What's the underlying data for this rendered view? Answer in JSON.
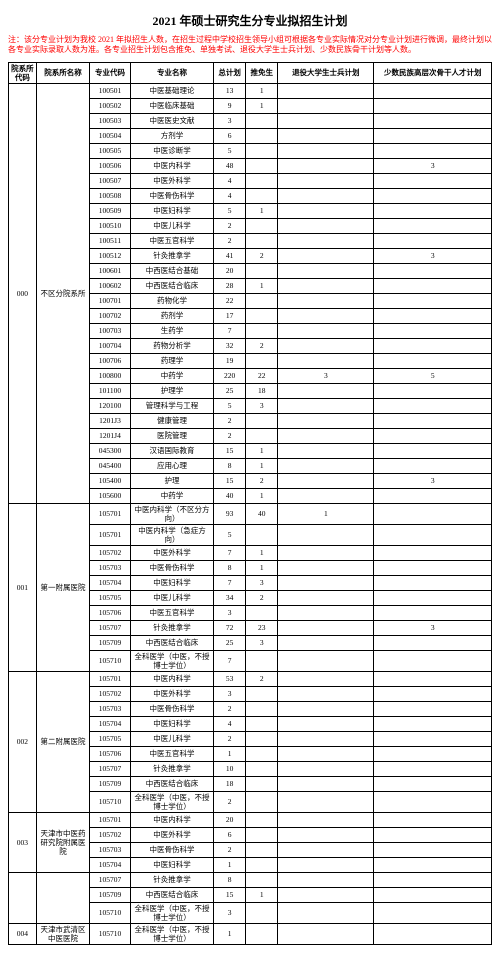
{
  "title": "2021 年硕士研究生分专业拟招生计划",
  "note_label": "注：",
  "note_text": "该分专业计划为我校 2021 年拟招生人数，在招生过程中学校招生领导小组可根据各专业实际情况对分专业计划进行微调，最终计划以各专业实际录取人数为准。各专业招生计划包含推免、单独考试、退役大学生士兵计划、少数民族骨干计划等人数。",
  "headers": {
    "dept_code": "院系所代码",
    "dept_name": "院系所名称",
    "major_code": "专业代码",
    "major_name": "专业名称",
    "total": "总计划",
    "rec": "推免生",
    "soldier": "退役大学生士兵计划",
    "minority": "少数民族高层次骨干人才计划"
  },
  "groups": [
    {
      "dept_code": "000",
      "dept_name": "不区分院系所",
      "rows": [
        {
          "mc": "100501",
          "mn": "中医基础理论",
          "t": "13",
          "r": "1",
          "s": "",
          "m": ""
        },
        {
          "mc": "100502",
          "mn": "中医临床基础",
          "t": "9",
          "r": "1",
          "s": "",
          "m": ""
        },
        {
          "mc": "100503",
          "mn": "中医医史文献",
          "t": "3",
          "r": "",
          "s": "",
          "m": ""
        },
        {
          "mc": "100504",
          "mn": "方剂学",
          "t": "6",
          "r": "",
          "s": "",
          "m": ""
        },
        {
          "mc": "100505",
          "mn": "中医诊断学",
          "t": "5",
          "r": "",
          "s": "",
          "m": ""
        },
        {
          "mc": "100506",
          "mn": "中医内科学",
          "t": "48",
          "r": "",
          "s": "",
          "m": "3"
        },
        {
          "mc": "100507",
          "mn": "中医外科学",
          "t": "4",
          "r": "",
          "s": "",
          "m": ""
        },
        {
          "mc": "100508",
          "mn": "中医骨伤科学",
          "t": "4",
          "r": "",
          "s": "",
          "m": ""
        },
        {
          "mc": "100509",
          "mn": "中医妇科学",
          "t": "5",
          "r": "1",
          "s": "",
          "m": ""
        },
        {
          "mc": "100510",
          "mn": "中医儿科学",
          "t": "2",
          "r": "",
          "s": "",
          "m": ""
        },
        {
          "mc": "100511",
          "mn": "中医五官科学",
          "t": "2",
          "r": "",
          "s": "",
          "m": ""
        },
        {
          "mc": "100512",
          "mn": "针灸推拿学",
          "t": "41",
          "r": "2",
          "s": "",
          "m": "3"
        },
        {
          "mc": "100601",
          "mn": "中西医结合基础",
          "t": "20",
          "r": "",
          "s": "",
          "m": ""
        },
        {
          "mc": "100602",
          "mn": "中西医结合临床",
          "t": "28",
          "r": "1",
          "s": "",
          "m": ""
        },
        {
          "mc": "100701",
          "mn": "药物化学",
          "t": "22",
          "r": "",
          "s": "",
          "m": ""
        },
        {
          "mc": "100702",
          "mn": "药剂学",
          "t": "17",
          "r": "",
          "s": "",
          "m": ""
        },
        {
          "mc": "100703",
          "mn": "生药学",
          "t": "7",
          "r": "",
          "s": "",
          "m": ""
        },
        {
          "mc": "100704",
          "mn": "药物分析学",
          "t": "32",
          "r": "2",
          "s": "",
          "m": ""
        },
        {
          "mc": "100706",
          "mn": "药理学",
          "t": "19",
          "r": "",
          "s": "",
          "m": ""
        },
        {
          "mc": "100800",
          "mn": "中药学",
          "t": "220",
          "r": "22",
          "s": "3",
          "m": "5"
        },
        {
          "mc": "101100",
          "mn": "护理学",
          "t": "25",
          "r": "18",
          "s": "",
          "m": ""
        },
        {
          "mc": "120100",
          "mn": "管理科学与工程",
          "t": "5",
          "r": "3",
          "s": "",
          "m": ""
        },
        {
          "mc": "1201J3",
          "mn": "健康管理",
          "t": "2",
          "r": "",
          "s": "",
          "m": ""
        },
        {
          "mc": "1201J4",
          "mn": "医院管理",
          "t": "2",
          "r": "",
          "s": "",
          "m": ""
        },
        {
          "mc": "045300",
          "mn": "汉语国际教育",
          "t": "15",
          "r": "1",
          "s": "",
          "m": ""
        },
        {
          "mc": "045400",
          "mn": "应用心理",
          "t": "8",
          "r": "1",
          "s": "",
          "m": ""
        },
        {
          "mc": "105400",
          "mn": "护理",
          "t": "15",
          "r": "2",
          "s": "",
          "m": "3"
        },
        {
          "mc": "105600",
          "mn": "中药学",
          "t": "40",
          "r": "1",
          "s": "",
          "m": ""
        }
      ]
    },
    {
      "dept_code": "001",
      "dept_name": "第一附属医院",
      "rows": [
        {
          "mc": "105701",
          "mn": "中医内科学（不区分方向）",
          "t": "93",
          "r": "40",
          "s": "1",
          "m": ""
        },
        {
          "mc": "105701",
          "mn": "中医内科学（急症方向）",
          "t": "5",
          "r": "",
          "s": "",
          "m": ""
        },
        {
          "mc": "105702",
          "mn": "中医外科学",
          "t": "7",
          "r": "1",
          "s": "",
          "m": ""
        },
        {
          "mc": "105703",
          "mn": "中医骨伤科学",
          "t": "8",
          "r": "1",
          "s": "",
          "m": ""
        },
        {
          "mc": "105704",
          "mn": "中医妇科学",
          "t": "7",
          "r": "3",
          "s": "",
          "m": ""
        },
        {
          "mc": "105705",
          "mn": "中医儿科学",
          "t": "34",
          "r": "2",
          "s": "",
          "m": ""
        },
        {
          "mc": "105706",
          "mn": "中医五官科学",
          "t": "3",
          "r": "",
          "s": "",
          "m": ""
        },
        {
          "mc": "105707",
          "mn": "针灸推拿学",
          "t": "72",
          "r": "23",
          "s": "",
          "m": "3"
        },
        {
          "mc": "105709",
          "mn": "中西医结合临床",
          "t": "25",
          "r": "3",
          "s": "",
          "m": ""
        },
        {
          "mc": "105710",
          "mn": "全科医学（中医，不授博士学位）",
          "t": "7",
          "r": "",
          "s": "",
          "m": ""
        }
      ]
    },
    {
      "dept_code": "002",
      "dept_name": "第二附属医院",
      "rows": [
        {
          "mc": "105701",
          "mn": "中医内科学",
          "t": "53",
          "r": "2",
          "s": "",
          "m": ""
        },
        {
          "mc": "105702",
          "mn": "中医外科学",
          "t": "3",
          "r": "",
          "s": "",
          "m": ""
        },
        {
          "mc": "105703",
          "mn": "中医骨伤科学",
          "t": "2",
          "r": "",
          "s": "",
          "m": ""
        },
        {
          "mc": "105704",
          "mn": "中医妇科学",
          "t": "4",
          "r": "",
          "s": "",
          "m": ""
        },
        {
          "mc": "105705",
          "mn": "中医儿科学",
          "t": "2",
          "r": "",
          "s": "",
          "m": ""
        },
        {
          "mc": "105706",
          "mn": "中医五官科学",
          "t": "1",
          "r": "",
          "s": "",
          "m": ""
        },
        {
          "mc": "105707",
          "mn": "针灸推拿学",
          "t": "10",
          "r": "",
          "s": "",
          "m": ""
        },
        {
          "mc": "105709",
          "mn": "中西医结合临床",
          "t": "18",
          "r": "",
          "s": "",
          "m": ""
        },
        {
          "mc": "105710",
          "mn": "全科医学（中医，不授博士学位）",
          "t": "2",
          "r": "",
          "s": "",
          "m": ""
        }
      ]
    },
    {
      "dept_code": "003",
      "dept_name": "天津市中医药研究院附属医院",
      "rows": [
        {
          "mc": "105701",
          "mn": "中医内科学",
          "t": "20",
          "r": "",
          "s": "",
          "m": ""
        },
        {
          "mc": "105702",
          "mn": "中医外科学",
          "t": "6",
          "r": "",
          "s": "",
          "m": ""
        },
        {
          "mc": "105703",
          "mn": "中医骨伤科学",
          "t": "2",
          "r": "",
          "s": "",
          "m": ""
        },
        {
          "mc": "105704",
          "mn": "中医妇科学",
          "t": "1",
          "r": "",
          "s": "",
          "m": ""
        }
      ]
    },
    {
      "dept_code": "",
      "dept_name": "",
      "rows": [
        {
          "mc": "105707",
          "mn": "针灸推拿学",
          "t": "8",
          "r": "",
          "s": "",
          "m": ""
        },
        {
          "mc": "105709",
          "mn": "中西医结合临床",
          "t": "15",
          "r": "1",
          "s": "",
          "m": ""
        },
        {
          "mc": "105710",
          "mn": "全科医学（中医，不授博士学位）",
          "t": "3",
          "r": "",
          "s": "",
          "m": ""
        }
      ]
    },
    {
      "dept_code": "004",
      "dept_name": "天津市武清区中医医院",
      "rows": [
        {
          "mc": "105710",
          "mn": "全科医学（中医，不授博士学位）",
          "t": "1",
          "r": "",
          "s": "",
          "m": ""
        }
      ]
    }
  ]
}
